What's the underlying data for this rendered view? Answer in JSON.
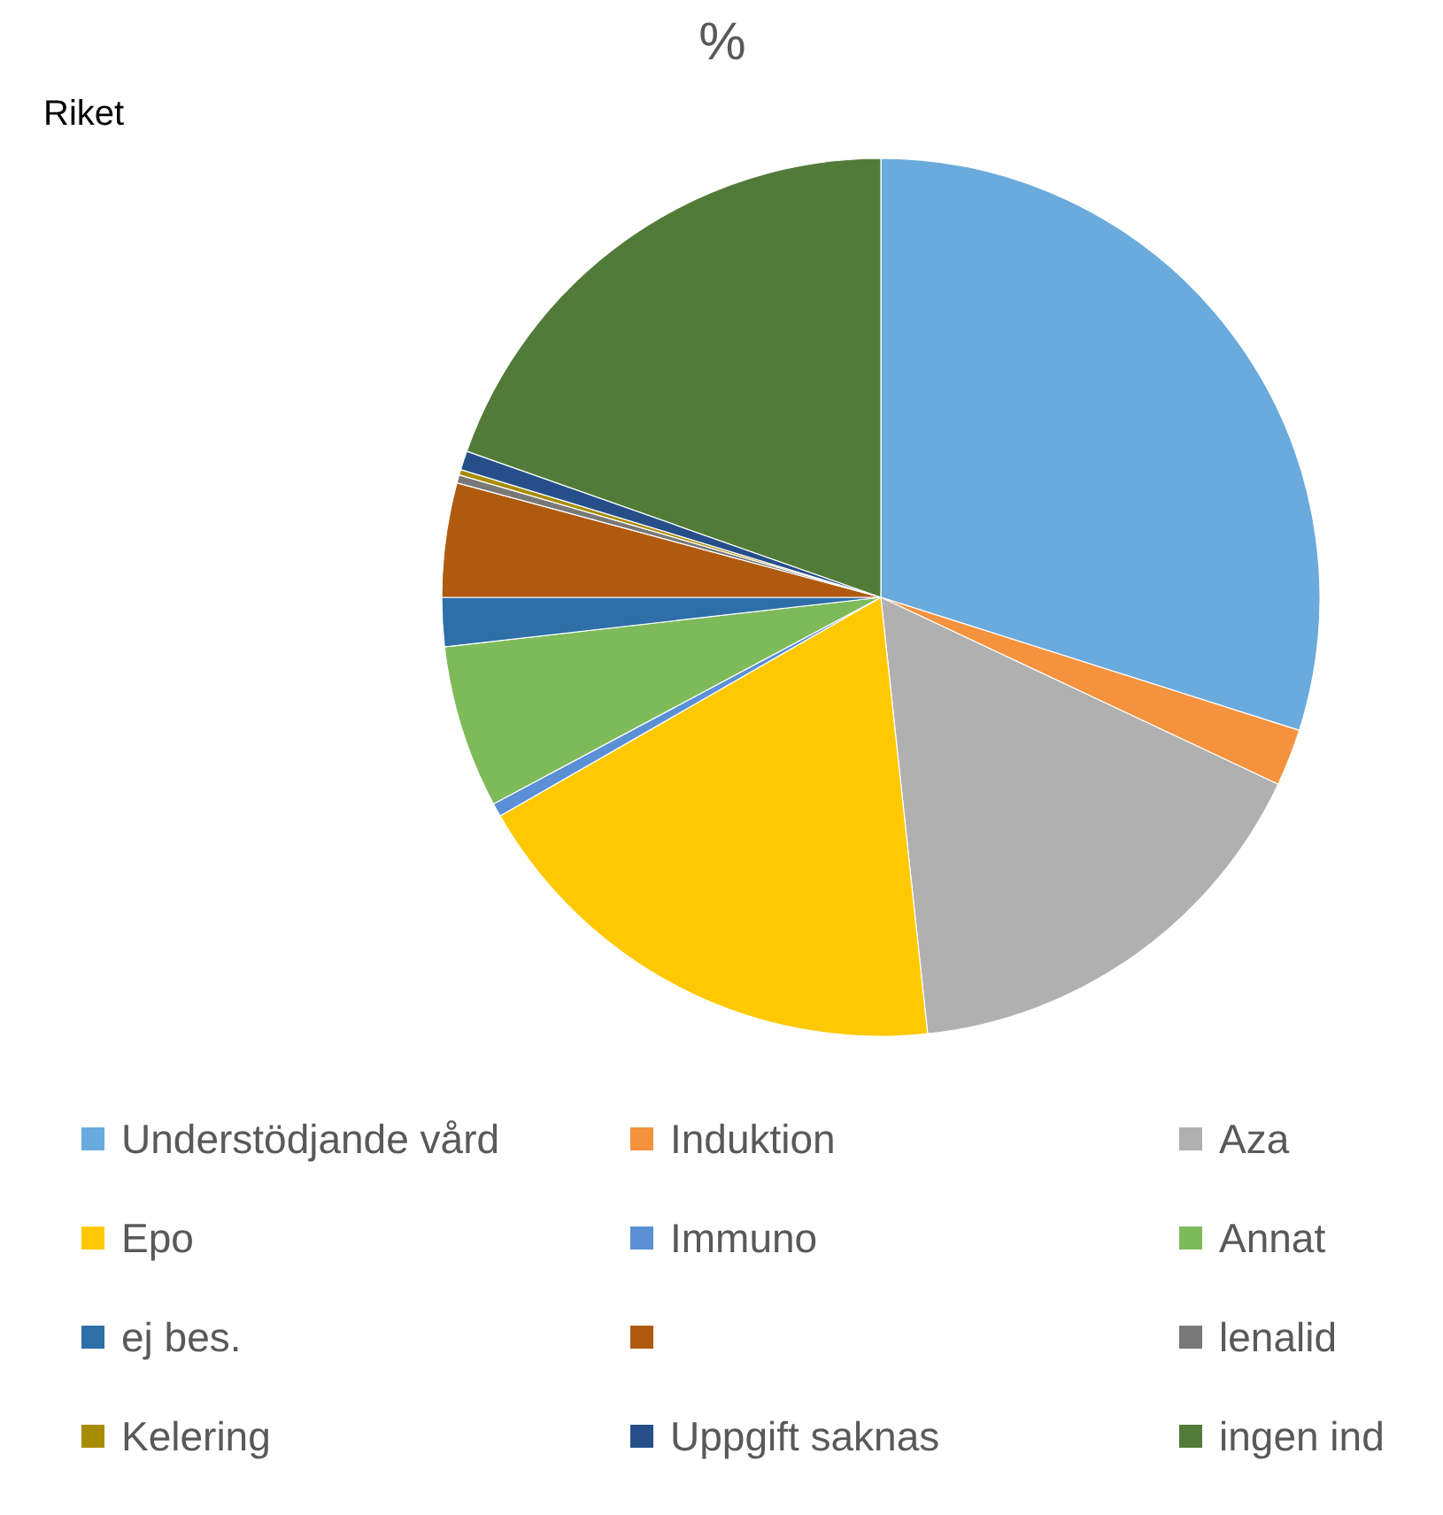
{
  "chart_data": {
    "type": "pie",
    "title": "%",
    "annotations": [
      "Riket"
    ],
    "categories": [
      "Understödjande vård",
      "Induktion",
      "Aza",
      "Epo",
      "Immuno",
      "Annat",
      "ej bes.",
      null,
      "lenalid",
      "Kelering",
      "Uppgift saknas",
      "ingen ind"
    ],
    "values": [
      29.9,
      2.1,
      16.3,
      18.4,
      0.5,
      6.0,
      1.8,
      4.2,
      0.3,
      0.2,
      0.7,
      19.6
    ],
    "colors": [
      "#6aaadc",
      "#f4923e",
      "#b0b0b0",
      "#ffc800",
      "#5b8fd6",
      "#7fba5a",
      "#2e6fa7",
      "#b05a10",
      "#787878",
      "#a88c00",
      "#264f8a",
      "#527b39"
    ],
    "legend": "bottom"
  }
}
